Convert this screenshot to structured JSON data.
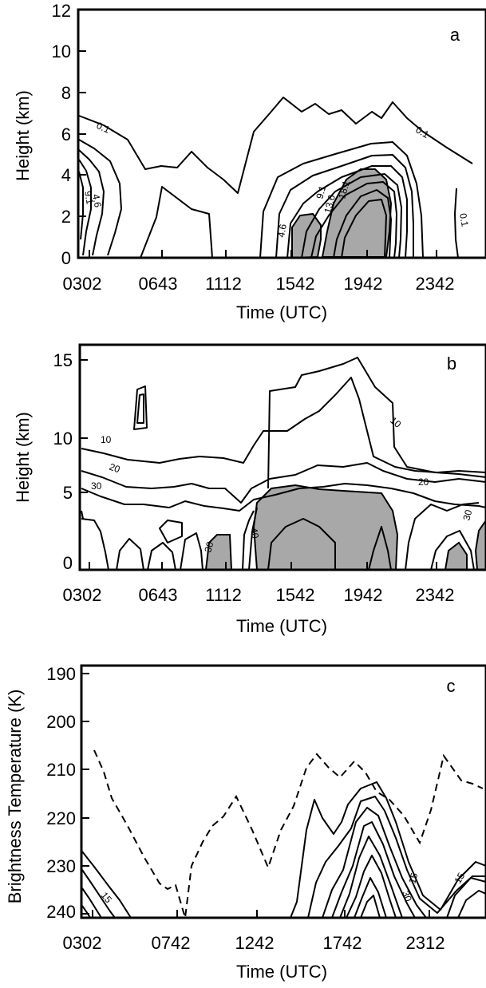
{
  "chart_data": [
    {
      "type": "contour",
      "panel_label": "a",
      "xlabel": "Time (UTC)",
      "ylabel": "Height (km)",
      "xticks": [
        "0302",
        "0643",
        "1112",
        "1542",
        "1942",
        "2342"
      ],
      "yticks": [
        0,
        2,
        4,
        6,
        8,
        10,
        12
      ],
      "ylim": [
        0,
        12
      ],
      "contour_labels": [
        "0.1",
        "0.1",
        "0.1",
        "4.6",
        "9.1",
        "4.6",
        "9.1",
        "13.6",
        "18.1",
        "0.1"
      ],
      "shaded": "highest contour levels (gray)"
    },
    {
      "type": "contour",
      "panel_label": "b",
      "xlabel": "Time (UTC)",
      "ylabel": "Height (km)",
      "xticks": [
        "0302",
        "0643",
        "1112",
        "1542",
        "1942",
        "2342"
      ],
      "yticks": [
        0,
        5,
        10,
        15
      ],
      "ylim": [
        0,
        15
      ],
      "contour_labels": [
        "10",
        "10",
        "20",
        "20",
        "30",
        "30",
        "30",
        "40"
      ],
      "shaded": "highest contour levels (gray)"
    },
    {
      "type": "contour",
      "panel_label": "c",
      "xlabel": "Time (UTC)",
      "ylabel": "Brightness Temperature (K)",
      "xticks": [
        "0302",
        "0742",
        "1242",
        "1742",
        "2312"
      ],
      "yticks": [
        190,
        200,
        210,
        220,
        230,
        240
      ],
      "ylim": [
        240,
        190
      ],
      "contour_labels": [
        "15",
        "15",
        "30",
        "15"
      ],
      "dashed_line": "dashed curve"
    }
  ]
}
